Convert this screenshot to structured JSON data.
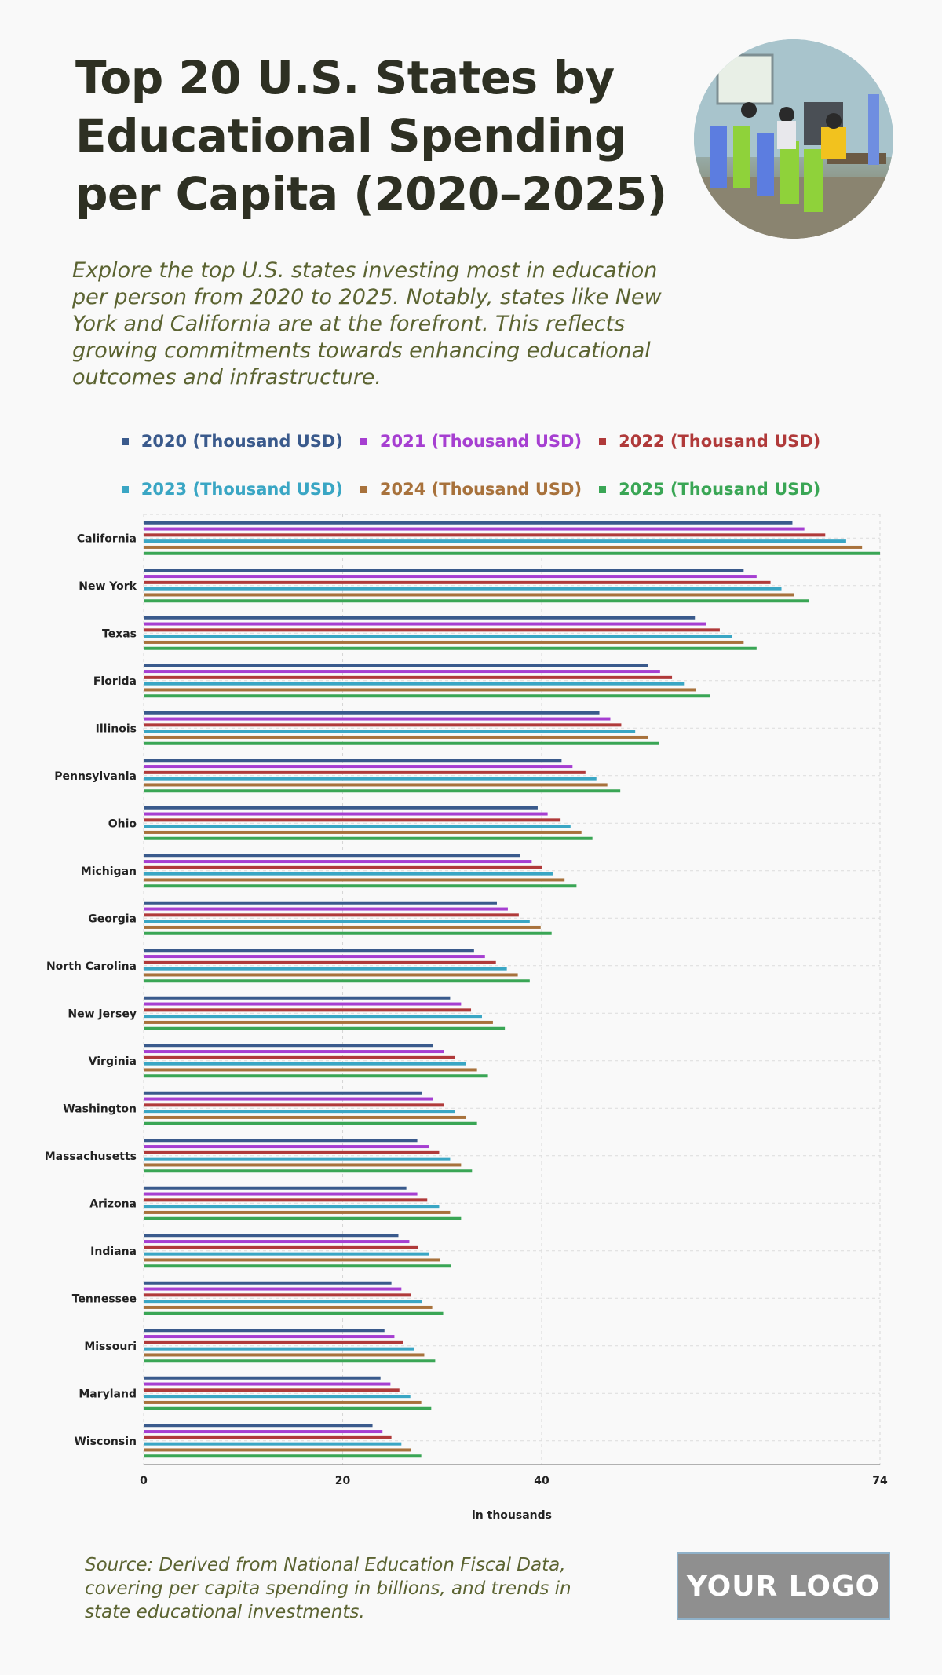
{
  "header": {
    "title": "Top 20 U.S. States by Educational Spending per Capita (2020–2025)",
    "subtitle": "Explore the top U.S. states investing most in education per person from 2020 to 2025. Notably, states like New York and California are at the forefront. This reflects growing commitments towards enhancing educational outcomes and infrastructure.",
    "image_icon": "classroom-photo"
  },
  "footer": {
    "source": "Source: Derived from National Education Fiscal Data, covering per capita spending in billions, and trends in state educational investments.",
    "logo": "YOUR LOGO"
  },
  "chart_data": {
    "type": "bar",
    "orientation": "horizontal",
    "title": "Top 20 U.S. States by Educational Spending per Capita (2020–2025)",
    "xlabel": "in thousands",
    "ylabel": "",
    "xlim": [
      0,
      74
    ],
    "xticks": [
      "0",
      "20",
      "40",
      "74"
    ],
    "xtick_values": [
      0,
      20,
      40,
      74
    ],
    "grid": true,
    "legend_position": "top-center",
    "categories": [
      "California",
      "New York",
      "Texas",
      "Florida",
      "Illinois",
      "Pennsylvania",
      "Ohio",
      "Michigan",
      "Georgia",
      "North Carolina",
      "New Jersey",
      "Virginia",
      "Washington",
      "Massachusetts",
      "Arizona",
      "Indiana",
      "Tennessee",
      "Missouri",
      "Maryland",
      "Wisconsin"
    ],
    "series": [
      {
        "name": "2020 (Thousand USD)",
        "color": "#3a5a8c",
        "values": [
          65.2,
          60.3,
          55.4,
          50.7,
          45.8,
          42.0,
          39.6,
          37.8,
          35.5,
          33.2,
          30.8,
          29.1,
          28.0,
          27.5,
          26.4,
          25.6,
          24.9,
          24.2,
          23.8,
          23.0
        ]
      },
      {
        "name": "2021 (Thousand USD)",
        "color": "#a63fd1",
        "values": [
          66.4,
          61.6,
          56.5,
          51.9,
          46.9,
          43.1,
          40.6,
          39.0,
          36.6,
          34.3,
          31.9,
          30.2,
          29.1,
          28.7,
          27.5,
          26.7,
          25.9,
          25.2,
          24.8,
          24.0
        ]
      },
      {
        "name": "2022 (Thousand USD)",
        "color": "#b03a3a",
        "values": [
          68.5,
          63.0,
          57.9,
          53.1,
          48.0,
          44.4,
          41.9,
          40.0,
          37.7,
          35.4,
          32.9,
          31.3,
          30.2,
          29.7,
          28.5,
          27.6,
          26.9,
          26.1,
          25.7,
          24.9
        ]
      },
      {
        "name": "2023 (Thousand USD)",
        "color": "#3aa6c4",
        "values": [
          70.6,
          64.1,
          59.1,
          54.3,
          49.4,
          45.5,
          42.9,
          41.1,
          38.8,
          36.5,
          34.0,
          32.4,
          31.3,
          30.8,
          29.7,
          28.7,
          28.0,
          27.2,
          26.8,
          25.9
        ]
      },
      {
        "name": "2024 (Thousand USD)",
        "color": "#a8723c",
        "values": [
          72.2,
          65.4,
          60.3,
          55.5,
          50.7,
          46.6,
          44.0,
          42.3,
          39.9,
          37.6,
          35.1,
          33.5,
          32.4,
          31.9,
          30.8,
          29.8,
          29.0,
          28.2,
          27.9,
          26.9
        ]
      },
      {
        "name": "2025 (Thousand USD)",
        "color": "#3aa655",
        "values": [
          74.0,
          66.9,
          61.6,
          56.9,
          51.8,
          47.9,
          45.1,
          43.5,
          41.0,
          38.8,
          36.3,
          34.6,
          33.5,
          33.0,
          31.9,
          30.9,
          30.1,
          29.3,
          28.9,
          27.9
        ]
      }
    ]
  }
}
